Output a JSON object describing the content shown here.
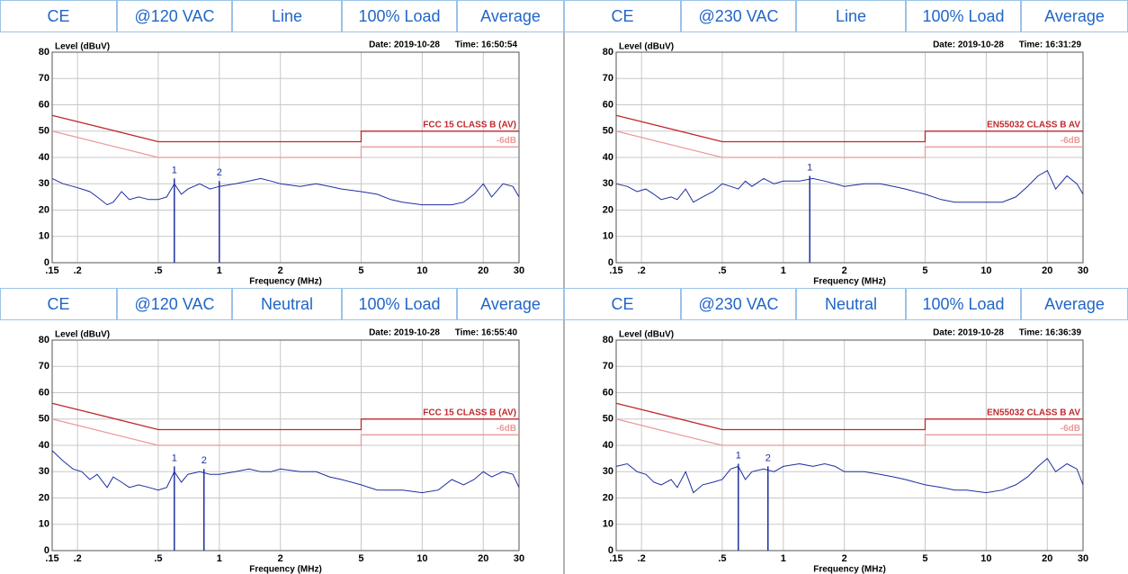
{
  "chart_data": [
    {
      "type": "line",
      "header": [
        "CE",
        "@120 VAC",
        "Line",
        "100% Load",
        "Average"
      ],
      "date": "Date: 2019-10-28",
      "time": "Time: 16:50:54",
      "ylabel": "Level (dBuV)",
      "xlabel": "Frequency (MHz)",
      "log_x": true,
      "grid": true,
      "xlim": [
        0.15,
        30
      ],
      "ylim": [
        0,
        80
      ],
      "xticks": [
        {
          "value": 0.15,
          "label": ".15"
        },
        {
          "value": 0.2,
          "label": ".2"
        },
        {
          "value": 0.5,
          "label": ".5"
        },
        1,
        2,
        5,
        10,
        20,
        30
      ],
      "yticks": [
        0,
        10,
        20,
        30,
        40,
        50,
        60,
        70,
        80
      ],
      "series": [
        {
          "name": "FCC 15 CLASS B (AV)",
          "color": "#c0282e",
          "x": [
            0.15,
            0.5,
            5,
            5,
            30
          ],
          "values": [
            56,
            46,
            46,
            50,
            50
          ]
        },
        {
          "name": "-6dB",
          "color": "#e99a9a",
          "x": [
            0.15,
            0.5,
            5,
            5,
            30
          ],
          "values": [
            50,
            40,
            40,
            44,
            44
          ]
        },
        {
          "color": "#1f2fa0",
          "x": [
            0.15,
            0.17,
            0.19,
            0.21,
            0.23,
            0.25,
            0.28,
            0.3,
            0.33,
            0.36,
            0.4,
            0.45,
            0.5,
            0.55,
            0.6,
            0.65,
            0.7,
            0.8,
            0.9,
            1,
            1.2,
            1.4,
            1.6,
            1.8,
            2,
            2.5,
            3,
            3.5,
            4,
            5,
            6,
            7,
            8,
            10,
            12,
            14,
            16,
            18,
            20,
            22,
            25,
            28,
            30
          ],
          "values": [
            32,
            30,
            29,
            28,
            27,
            25,
            22,
            23,
            27,
            24,
            25,
            24,
            24,
            25,
            30,
            26,
            28,
            30,
            28,
            29,
            30,
            31,
            32,
            31,
            30,
            29,
            30,
            29,
            28,
            27,
            26,
            24,
            23,
            22,
            22,
            22,
            23,
            26,
            30,
            25,
            30,
            29,
            25
          ]
        }
      ],
      "markers": [
        {
          "label": "1",
          "x": 0.6,
          "value": 32
        },
        {
          "label": "2",
          "x": 1.0,
          "value": 31
        }
      ]
    },
    {
      "type": "line",
      "header": [
        "CE",
        "@230 VAC",
        "Line",
        "100% Load",
        "Average"
      ],
      "date": "Date: 2019-10-28",
      "time": "Time: 16:31:29",
      "ylabel": "Level (dBuV)",
      "xlabel": "Frequency (MHz)",
      "log_x": true,
      "grid": true,
      "xlim": [
        0.15,
        30
      ],
      "ylim": [
        0,
        80
      ],
      "xticks": [
        {
          "value": 0.15,
          "label": ".15"
        },
        {
          "value": 0.2,
          "label": ".2"
        },
        {
          "value": 0.5,
          "label": ".5"
        },
        1,
        2,
        5,
        10,
        20,
        30
      ],
      "yticks": [
        0,
        10,
        20,
        30,
        40,
        50,
        60,
        70,
        80
      ],
      "series": [
        {
          "name": "EN55032 CLASS B AV",
          "color": "#c0282e",
          "x": [
            0.15,
            0.5,
            5,
            5,
            30
          ],
          "values": [
            56,
            46,
            46,
            50,
            50
          ]
        },
        {
          "name": "-6dB",
          "color": "#e99a9a",
          "x": [
            0.15,
            0.5,
            5,
            5,
            30
          ],
          "values": [
            50,
            40,
            40,
            44,
            44
          ]
        },
        {
          "color": "#1f2fa0",
          "x": [
            0.15,
            0.17,
            0.19,
            0.21,
            0.23,
            0.25,
            0.28,
            0.3,
            0.33,
            0.36,
            0.4,
            0.45,
            0.5,
            0.55,
            0.6,
            0.65,
            0.7,
            0.8,
            0.9,
            1,
            1.2,
            1.4,
            1.6,
            1.8,
            2,
            2.5,
            3,
            3.5,
            4,
            5,
            6,
            7,
            8,
            10,
            12,
            14,
            16,
            18,
            20,
            22,
            25,
            28,
            30
          ],
          "values": [
            30,
            29,
            27,
            28,
            26,
            24,
            25,
            24,
            28,
            23,
            25,
            27,
            30,
            29,
            28,
            31,
            29,
            32,
            30,
            31,
            31,
            32,
            31,
            30,
            29,
            30,
            30,
            29,
            28,
            26,
            24,
            23,
            23,
            23,
            23,
            25,
            29,
            33,
            35,
            28,
            33,
            30,
            26
          ]
        }
      ],
      "markers": [
        {
          "label": "1",
          "x": 1.35,
          "value": 33
        }
      ]
    },
    {
      "type": "line",
      "header": [
        "CE",
        "@120 VAC",
        "Neutral",
        "100% Load",
        "Average"
      ],
      "date": "Date: 2019-10-28",
      "time": "Time: 16:55:40",
      "ylabel": "Level (dBuV)",
      "xlabel": "Frequency (MHz)",
      "log_x": true,
      "grid": true,
      "xlim": [
        0.15,
        30
      ],
      "ylim": [
        0,
        80
      ],
      "xticks": [
        {
          "value": 0.15,
          "label": ".15"
        },
        {
          "value": 0.2,
          "label": ".2"
        },
        {
          "value": 0.5,
          "label": ".5"
        },
        1,
        2,
        5,
        10,
        20,
        30
      ],
      "yticks": [
        0,
        10,
        20,
        30,
        40,
        50,
        60,
        70,
        80
      ],
      "series": [
        {
          "name": "FCC 15 CLASS B (AV)",
          "color": "#c0282e",
          "x": [
            0.15,
            0.5,
            5,
            5,
            30
          ],
          "values": [
            56,
            46,
            46,
            50,
            50
          ]
        },
        {
          "name": "-6dB",
          "color": "#e99a9a",
          "x": [
            0.15,
            0.5,
            5,
            5,
            30
          ],
          "values": [
            50,
            40,
            40,
            44,
            44
          ]
        },
        {
          "color": "#1f2fa0",
          "x": [
            0.15,
            0.17,
            0.19,
            0.21,
            0.23,
            0.25,
            0.28,
            0.3,
            0.33,
            0.36,
            0.4,
            0.45,
            0.5,
            0.55,
            0.6,
            0.65,
            0.7,
            0.8,
            0.9,
            1,
            1.2,
            1.4,
            1.6,
            1.8,
            2,
            2.5,
            3,
            3.5,
            4,
            5,
            6,
            7,
            8,
            10,
            12,
            14,
            16,
            18,
            20,
            22,
            25,
            28,
            30
          ],
          "values": [
            38,
            34,
            31,
            30,
            27,
            29,
            24,
            28,
            26,
            24,
            25,
            24,
            23,
            24,
            30,
            26,
            29,
            30,
            29,
            29,
            30,
            31,
            30,
            30,
            31,
            30,
            30,
            28,
            27,
            25,
            23,
            23,
            23,
            22,
            23,
            27,
            25,
            27,
            30,
            28,
            30,
            29,
            24
          ]
        }
      ],
      "markers": [
        {
          "label": "1",
          "x": 0.6,
          "value": 32
        },
        {
          "label": "2",
          "x": 0.84,
          "value": 31
        }
      ]
    },
    {
      "type": "line",
      "header": [
        "CE",
        "@230 VAC",
        "Neutral",
        "100% Load",
        "Average"
      ],
      "date": "Date: 2019-10-28",
      "time": "Time: 16:36:39",
      "ylabel": "Level (dBuV)",
      "xlabel": "Frequency (MHz)",
      "log_x": true,
      "grid": true,
      "xlim": [
        0.15,
        30
      ],
      "ylim": [
        0,
        80
      ],
      "xticks": [
        {
          "value": 0.15,
          "label": ".15"
        },
        {
          "value": 0.2,
          "label": ".2"
        },
        {
          "value": 0.5,
          "label": ".5"
        },
        1,
        2,
        5,
        10,
        20,
        30
      ],
      "yticks": [
        0,
        10,
        20,
        30,
        40,
        50,
        60,
        70,
        80
      ],
      "series": [
        {
          "name": "EN55032 CLASS B AV",
          "color": "#c0282e",
          "x": [
            0.15,
            0.5,
            5,
            5,
            30
          ],
          "values": [
            56,
            46,
            46,
            50,
            50
          ]
        },
        {
          "name": "-6dB",
          "color": "#e99a9a",
          "x": [
            0.15,
            0.5,
            5,
            5,
            30
          ],
          "values": [
            50,
            40,
            40,
            44,
            44
          ]
        },
        {
          "color": "#1f2fa0",
          "x": [
            0.15,
            0.17,
            0.19,
            0.21,
            0.23,
            0.25,
            0.28,
            0.3,
            0.33,
            0.36,
            0.4,
            0.45,
            0.5,
            0.55,
            0.6,
            0.65,
            0.7,
            0.8,
            0.9,
            1,
            1.2,
            1.4,
            1.6,
            1.8,
            2,
            2.5,
            3,
            3.5,
            4,
            5,
            6,
            7,
            8,
            10,
            12,
            14,
            16,
            18,
            20,
            22,
            25,
            28,
            30
          ],
          "values": [
            32,
            33,
            30,
            29,
            26,
            25,
            27,
            24,
            30,
            22,
            25,
            26,
            27,
            31,
            32,
            27,
            30,
            31,
            30,
            32,
            33,
            32,
            33,
            32,
            30,
            30,
            29,
            28,
            27,
            25,
            24,
            23,
            23,
            22,
            23,
            25,
            28,
            32,
            35,
            30,
            33,
            31,
            25
          ]
        }
      ],
      "markers": [
        {
          "label": "1",
          "x": 0.6,
          "value": 33
        },
        {
          "label": "2",
          "x": 0.84,
          "value": 32
        }
      ]
    }
  ]
}
